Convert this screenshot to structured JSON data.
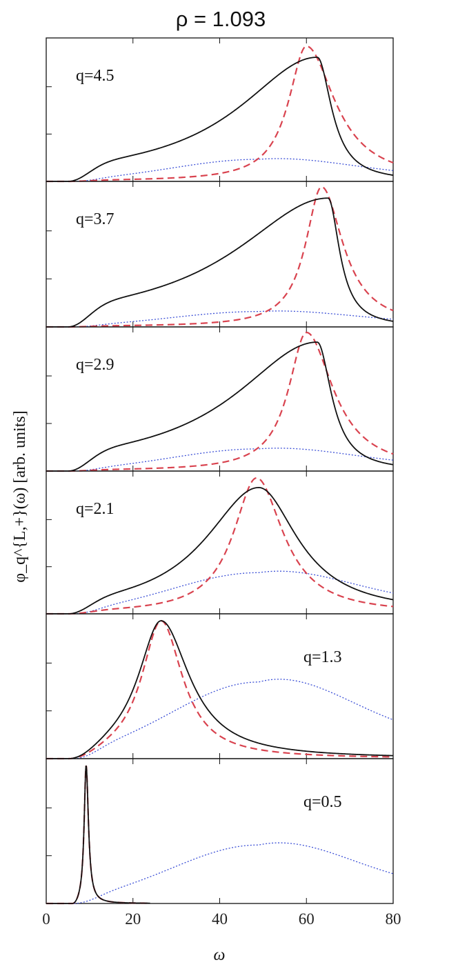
{
  "chart_data": {
    "type": "line",
    "title": "ρ = 1.093",
    "xlabel": "ω",
    "ylabel": "φ_q^{L,+}(ω) [arb. units]",
    "xlim": [
      0,
      80
    ],
    "xticks": [
      0,
      20,
      40,
      60,
      80
    ],
    "grid": false,
    "colors": {
      "solid": "#111111",
      "dashed": "#d9434f",
      "dotted": "#3b4fd6"
    },
    "panels": [
      {
        "label": "q=4.5",
        "series": [
          {
            "style": "solid",
            "peak": 62.5,
            "gammaLeft": 22,
            "gammaRight": 4.0,
            "height": 0.9
          },
          {
            "style": "dashed",
            "peak": 60.0,
            "gammaLeft": 5,
            "gammaRight": 8.0,
            "height": 0.98
          },
          {
            "style": "dotted",
            "peak": 49.0,
            "sigma": 20.0,
            "height": 0.16,
            "tail": 0.035
          }
        ]
      },
      {
        "label": "q=3.7",
        "series": [
          {
            "style": "solid",
            "peak": 65.0,
            "gammaLeft": 26,
            "gammaRight": 3.2,
            "height": 0.92
          },
          {
            "style": "dashed",
            "peak": 63.5,
            "gammaLeft": 4.5,
            "gammaRight": 6.0,
            "height": 1.0
          },
          {
            "style": "dotted",
            "peak": 49.0,
            "sigma": 20.0,
            "height": 0.11,
            "tail": 0.025
          }
        ]
      },
      {
        "label": "q=2.9",
        "series": [
          {
            "style": "solid",
            "peak": 62.5,
            "gammaLeft": 23,
            "gammaRight": 4.0,
            "height": 0.93
          },
          {
            "style": "dashed",
            "peak": 60.0,
            "gammaLeft": 5,
            "gammaRight": 7.5,
            "height": 1.0
          },
          {
            "style": "dotted",
            "peak": 49.0,
            "sigma": 20.0,
            "height": 0.16,
            "tail": 0.035
          }
        ]
      },
      {
        "label": "q=2.1",
        "series": [
          {
            "style": "solid",
            "peak": 49.0,
            "gammaLeft": 15,
            "gammaRight": 11,
            "height": 0.92
          },
          {
            "style": "dashed",
            "peak": 48.5,
            "gammaLeft": 6.5,
            "gammaRight": 7.5,
            "height": 0.99
          },
          {
            "style": "dotted",
            "peak": 49.0,
            "sigma": 20.0,
            "height": 0.3,
            "tail": 0.07
          }
        ]
      },
      {
        "label": "q=1.3",
        "series": [
          {
            "style": "solid",
            "peak": 26.5,
            "gammaLeft": 6.5,
            "gammaRight": 8.0,
            "height": 0.99
          },
          {
            "style": "dashed",
            "peak": 26.5,
            "gammaLeft": 5.5,
            "gammaRight": 6.0,
            "height": 0.99
          },
          {
            "style": "dotted",
            "peak": 49.0,
            "sigma": 20.0,
            "height": 0.55,
            "tail": 0.13
          }
        ]
      },
      {
        "label": "q=0.5",
        "series": [
          {
            "style": "solid",
            "peak": 9.2,
            "gammaLeft": 0.55,
            "gammaRight": 0.65,
            "height": 0.99
          },
          {
            "style": "dashed",
            "peak": 9.2,
            "gammaLeft": 0.55,
            "gammaRight": 0.65,
            "height": 0.99
          },
          {
            "style": "dotted",
            "peak": 49.0,
            "sigma": 20.0,
            "height": 0.42,
            "tail": 0.1
          }
        ]
      }
    ]
  }
}
